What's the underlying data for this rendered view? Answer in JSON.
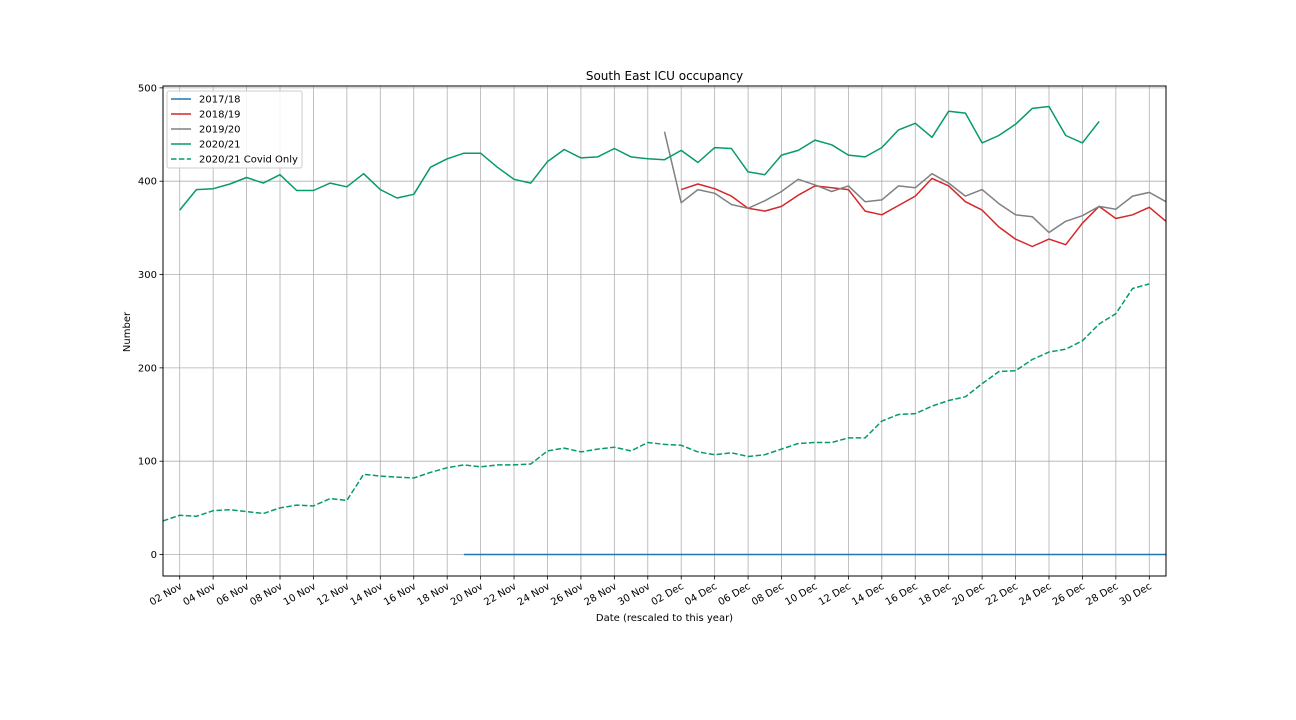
{
  "chart_data": {
    "type": "line",
    "title": "South East ICU occupancy",
    "xlabel": "Date (rescaled to this year)",
    "ylabel": "Number",
    "x_axis": {
      "type": "date",
      "range": [
        "2020-11-01",
        "2020-12-31"
      ],
      "tick_labels": [
        "02 Nov",
        "04 Nov",
        "06 Nov",
        "08 Nov",
        "10 Nov",
        "12 Nov",
        "14 Nov",
        "16 Nov",
        "18 Nov",
        "20 Nov",
        "22 Nov",
        "24 Nov",
        "26 Nov",
        "28 Nov",
        "30 Nov",
        "02 Dec",
        "04 Dec",
        "06 Dec",
        "08 Dec",
        "10 Dec",
        "12 Dec",
        "14 Dec",
        "16 Dec",
        "18 Dec",
        "20 Dec",
        "22 Dec",
        "24 Dec",
        "26 Dec",
        "28 Dec",
        "30 Dec"
      ],
      "tick_dates": [
        "2020-11-02",
        "2020-11-04",
        "2020-11-06",
        "2020-11-08",
        "2020-11-10",
        "2020-11-12",
        "2020-11-14",
        "2020-11-16",
        "2020-11-18",
        "2020-11-20",
        "2020-11-22",
        "2020-11-24",
        "2020-11-26",
        "2020-11-28",
        "2020-11-30",
        "2020-12-02",
        "2020-12-04",
        "2020-12-06",
        "2020-12-08",
        "2020-12-10",
        "2020-12-12",
        "2020-12-14",
        "2020-12-16",
        "2020-12-18",
        "2020-12-20",
        "2020-12-22",
        "2020-12-24",
        "2020-12-26",
        "2020-12-28",
        "2020-12-30"
      ]
    },
    "y_axis": {
      "range": [
        -23,
        502
      ],
      "ticks": [
        0,
        100,
        200,
        300,
        400,
        500
      ]
    },
    "grid": true,
    "legend_position": "top-left",
    "series": [
      {
        "name": "2017/18",
        "color": "#1f77b4",
        "style": "solid",
        "x_start": "2020-11-19",
        "x_end": "2020-12-31",
        "values": [
          0,
          0
        ]
      },
      {
        "name": "2018/19",
        "color": "#d62728",
        "style": "solid",
        "x_start": "2020-12-02",
        "values": [
          391,
          397,
          392,
          384,
          371,
          368,
          373,
          385,
          395,
          393,
          391,
          368,
          364,
          374,
          384,
          403,
          395,
          378,
          369,
          351,
          338,
          330,
          338,
          332,
          355,
          373,
          360,
          364,
          372,
          357
        ]
      },
      {
        "name": "2019/20",
        "color": "#808080",
        "style": "solid",
        "x_start": "2020-12-01",
        "values": [
          453,
          377,
          391,
          387,
          375,
          371,
          379,
          389,
          402,
          396,
          389,
          395,
          378,
          380,
          395,
          393,
          408,
          398,
          384,
          391,
          376,
          364,
          362,
          345,
          357,
          363,
          373,
          370,
          384,
          388,
          378
        ]
      },
      {
        "name": "2020/21",
        "color": "#069a6c",
        "style": "solid",
        "x_start": "2020-11-02",
        "values": [
          369,
          391,
          392,
          397,
          404,
          398,
          407,
          390,
          390,
          398,
          394,
          408,
          391,
          382,
          386,
          415,
          424,
          430,
          430,
          415,
          402,
          398,
          421,
          434,
          425,
          426,
          435,
          426,
          424,
          423,
          433,
          420,
          436,
          435,
          410,
          407,
          428,
          433,
          444,
          439,
          428,
          426,
          436,
          455,
          462,
          447,
          475,
          473,
          441,
          449,
          461,
          478,
          480,
          449,
          441,
          464
        ]
      },
      {
        "name": "2020/21 Covid Only",
        "color": "#069a6c",
        "style": "dashed",
        "x_start": "2020-11-01",
        "values": [
          36,
          42,
          41,
          47,
          48,
          46,
          44,
          50,
          53,
          52,
          60,
          58,
          86,
          84,
          83,
          82,
          88,
          93,
          96,
          94,
          96,
          96,
          97,
          111,
          114,
          110,
          113,
          115,
          111,
          120,
          118,
          117,
          110,
          107,
          109,
          105,
          107,
          113,
          119,
          120,
          120,
          125,
          125,
          143,
          150,
          151,
          159,
          165,
          169,
          183,
          196,
          197,
          209,
          217,
          220,
          229,
          247,
          258,
          285,
          290
        ]
      }
    ]
  }
}
